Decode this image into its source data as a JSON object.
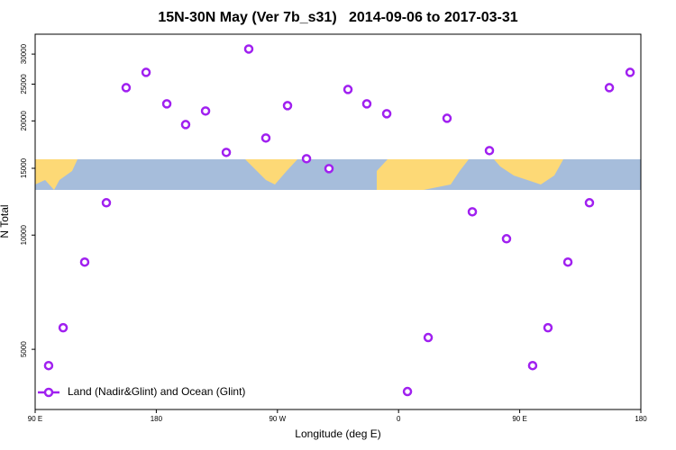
{
  "chart_data": {
    "type": "scatter",
    "title": "15N-30N May (Ver 7b_s31)   2014-09-06 to 2017-03-31",
    "x_label": "Longitude (deg E)",
    "y_label": "N Total",
    "xlim": [
      90,
      540
    ],
    "xticks": [
      {
        "value": 90,
        "label": "90 E"
      },
      {
        "value": 180,
        "label": "180"
      },
      {
        "value": 270,
        "label": "90 W"
      },
      {
        "value": 360,
        "label": "0"
      },
      {
        "value": 450,
        "label": "90 E"
      },
      {
        "value": 540,
        "label": "180"
      }
    ],
    "ylim": [
      3470,
      33850
    ],
    "yticks": [
      5000,
      10000,
      15000,
      20000,
      25000,
      30000
    ],
    "log_y": true,
    "legend": "bottom-left",
    "series": [
      {
        "name": "Land (Nadir&Glint) and Ocean (Glint)",
        "color": "#a020f0",
        "x": [
          100,
          110.8,
          126.8,
          142.9,
          157.6,
          172.4,
          187.8,
          201.8,
          216.6,
          232,
          248.7,
          261.4,
          277.5,
          291.6,
          308.3,
          322.4,
          336.4,
          351.2,
          366.6,
          382,
          396,
          414.8,
          427.5,
          440.2,
          459.6,
          471,
          485.8,
          501.8,
          516.6,
          532
        ],
        "values": [
          4530,
          5700,
          8490,
          12170,
          24470,
          26850,
          22180,
          19560,
          21240,
          16520,
          30940,
          18030,
          21940,
          15900,
          14970,
          24200,
          22180,
          20890,
          3870,
          5370,
          20320,
          11520,
          16700,
          9780,
          4530,
          5700,
          8490,
          12170,
          24470,
          26850
        ]
      }
    ]
  }
}
